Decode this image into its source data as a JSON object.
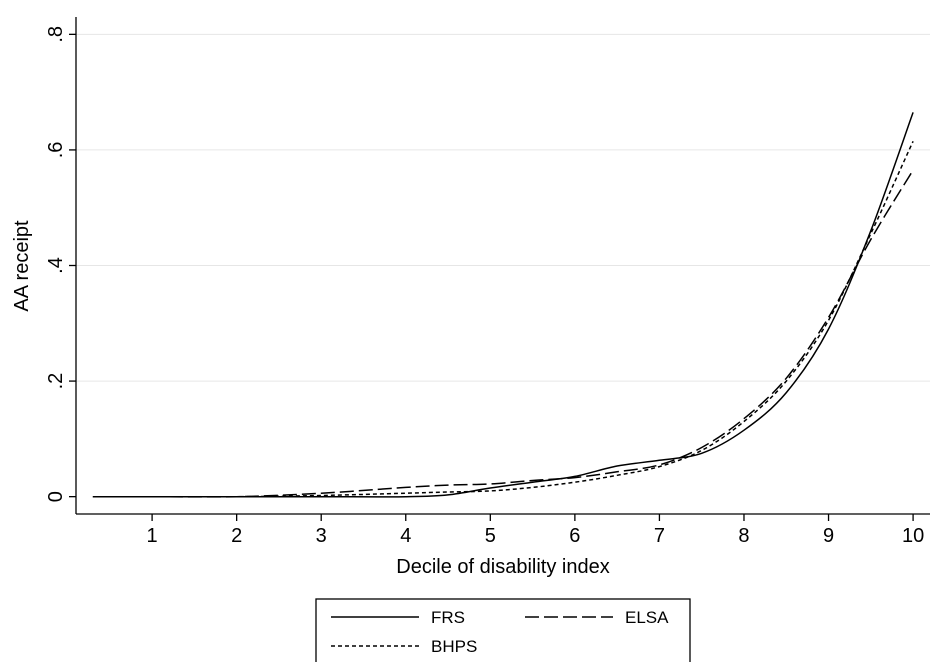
{
  "chart_data": {
    "type": "line",
    "title": "",
    "xlabel": "Decile of disability index",
    "ylabel": "AA receipt",
    "xlim": [
      0.1,
      10.2
    ],
    "ylim": [
      -0.03,
      0.83
    ],
    "x_ticks": [
      {
        "value": 1,
        "label": "1"
      },
      {
        "value": 2,
        "label": "2"
      },
      {
        "value": 3,
        "label": "3"
      },
      {
        "value": 4,
        "label": "4"
      },
      {
        "value": 5,
        "label": "5"
      },
      {
        "value": 6,
        "label": "6"
      },
      {
        "value": 7,
        "label": "7"
      },
      {
        "value": 8,
        "label": "8"
      },
      {
        "value": 9,
        "label": "9"
      },
      {
        "value": 10,
        "label": "10"
      }
    ],
    "y_ticks": [
      {
        "value": 0,
        "label": "0"
      },
      {
        "value": 0.2,
        "label": ".2"
      },
      {
        "value": 0.4,
        "label": ".4"
      },
      {
        "value": 0.6,
        "label": ".6"
      },
      {
        "value": 0.8,
        "label": ".8"
      }
    ],
    "grid": true,
    "legend_position": "bottom",
    "series": [
      {
        "name": "FRS",
        "style": "solid",
        "x": [
          0.3,
          1,
          2,
          3,
          4,
          4.5,
          5,
          5.5,
          6,
          6.5,
          7,
          7.5,
          8,
          8.5,
          9,
          9.5,
          10
        ],
        "y": [
          0,
          0,
          0,
          0,
          0,
          0.003,
          0.015,
          0.025,
          0.035,
          0.053,
          0.063,
          0.075,
          0.115,
          0.18,
          0.29,
          0.46,
          0.665
        ]
      },
      {
        "name": "ELSA",
        "style": "longdash",
        "x": [
          0.3,
          1,
          2,
          3,
          4,
          4.5,
          5,
          5.5,
          6,
          6.5,
          7,
          7.5,
          8,
          8.5,
          9,
          9.5,
          10
        ],
        "y": [
          0,
          0,
          0,
          0.006,
          0.016,
          0.02,
          0.022,
          0.028,
          0.033,
          0.043,
          0.055,
          0.085,
          0.135,
          0.205,
          0.31,
          0.445,
          0.565
        ]
      },
      {
        "name": "BHPS",
        "style": "shortdash",
        "x": [
          0.3,
          1,
          2,
          3,
          4,
          4.5,
          5,
          5.5,
          6,
          6.5,
          7,
          7.5,
          8,
          8.5,
          9,
          9.5,
          10
        ],
        "y": [
          0,
          0,
          0,
          0.002,
          0.006,
          0.008,
          0.01,
          0.016,
          0.025,
          0.037,
          0.052,
          0.08,
          0.13,
          0.2,
          0.305,
          0.455,
          0.615
        ]
      }
    ]
  }
}
